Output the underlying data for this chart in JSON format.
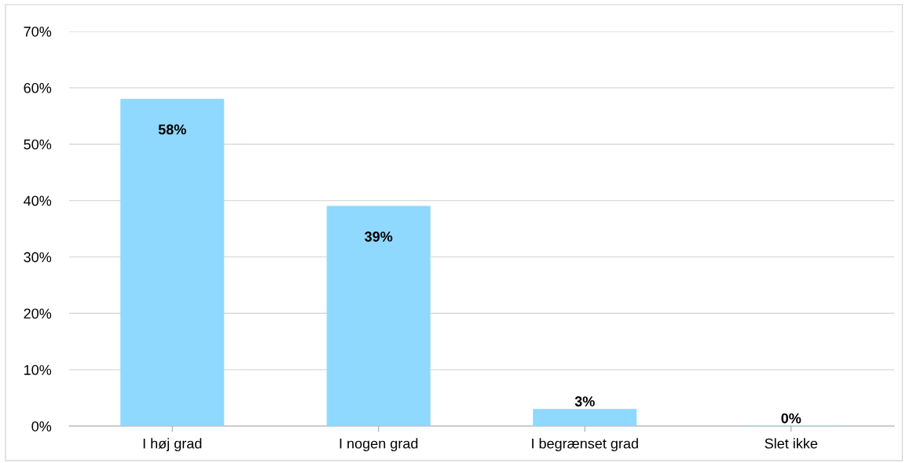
{
  "chart_data": {
    "type": "bar",
    "categories": [
      "I høj grad",
      "I nogen grad",
      "I begrænset grad",
      "Slet ikke"
    ],
    "values": [
      58,
      39,
      3,
      0
    ],
    "value_labels": [
      "58%",
      "39%",
      "3%",
      "0%"
    ],
    "color": "#8fd8ff",
    "ylim": [
      0,
      70
    ],
    "yticks": [
      {
        "value": 0,
        "label": "0%"
      },
      {
        "value": 10,
        "label": "10%"
      },
      {
        "value": 20,
        "label": "20%"
      },
      {
        "value": 30,
        "label": "30%"
      },
      {
        "value": 40,
        "label": "40%"
      },
      {
        "value": 50,
        "label": "50%"
      },
      {
        "value": 60,
        "label": "60%"
      },
      {
        "value": 70,
        "label": "70%"
      }
    ],
    "grid": "y"
  }
}
